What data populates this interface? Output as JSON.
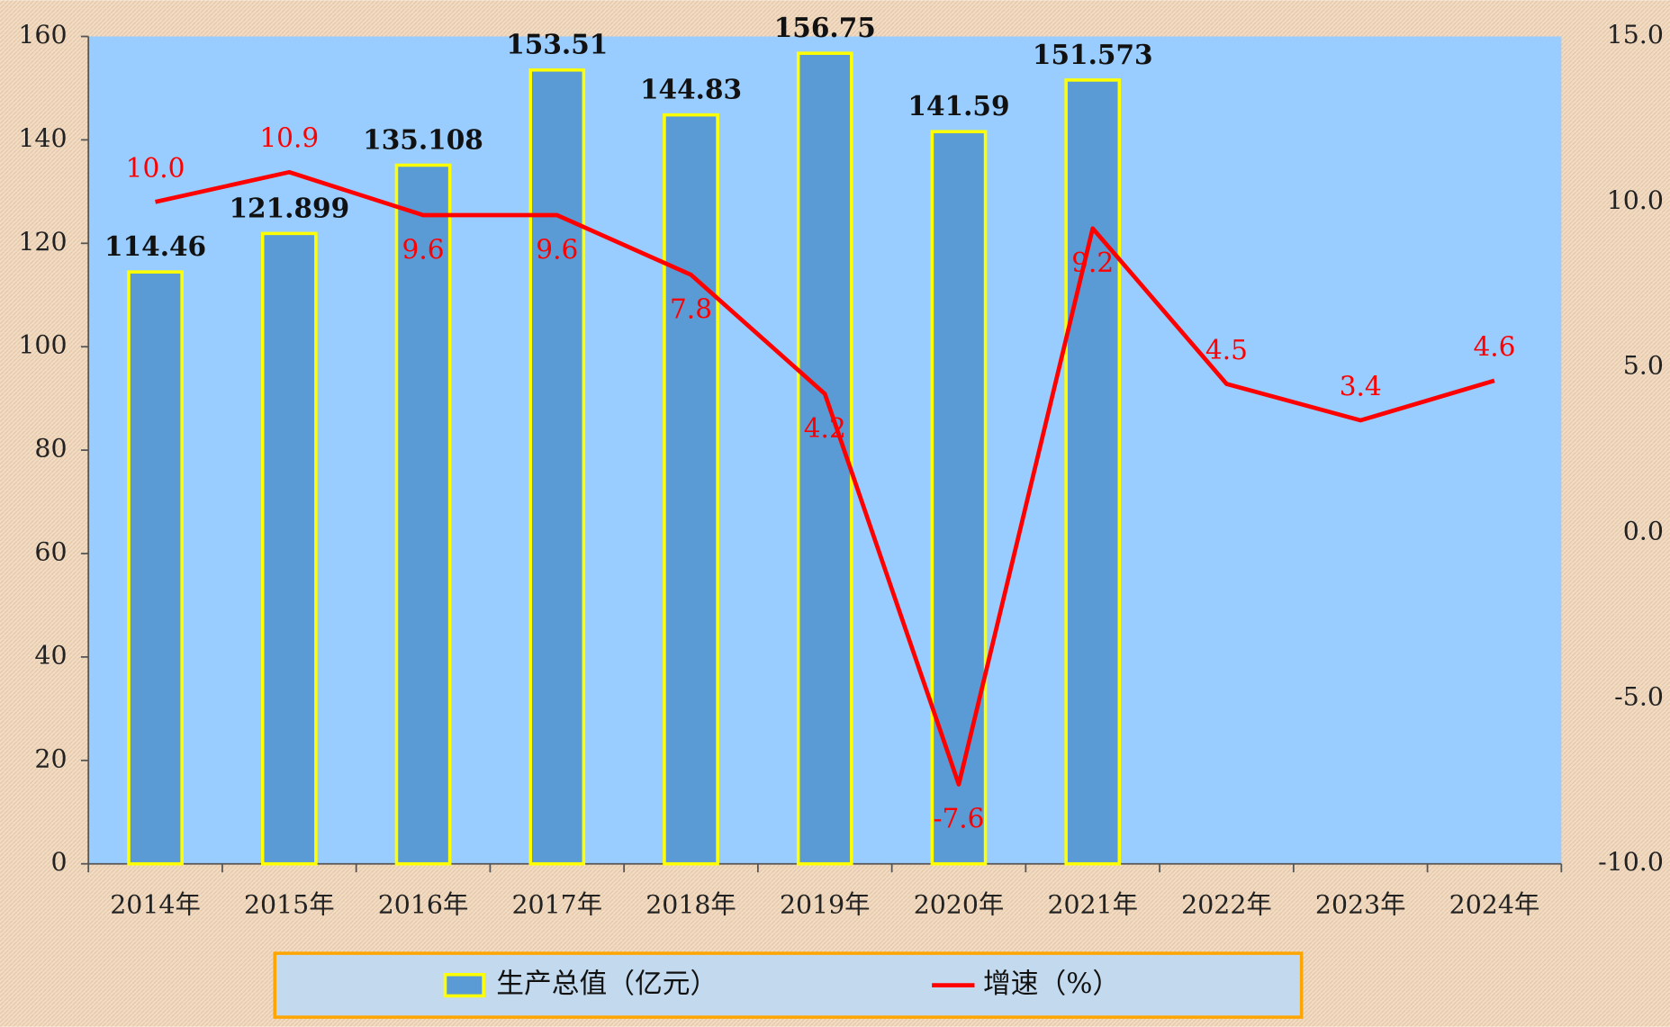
{
  "chart_data": {
    "type": "bar_line",
    "categories": [
      "2014年",
      "2015年",
      "2016年",
      "2017年",
      "2018年",
      "2019年",
      "2020年",
      "2021年",
      "2022年",
      "2023年",
      "2024年"
    ],
    "series": [
      {
        "name": "生产总值（亿元）",
        "type": "bar",
        "color": "#5b9bd5",
        "edge_color": "#ffff00",
        "axis": "y",
        "values": [
          114.46,
          121.899,
          135.108,
          153.51,
          144.83,
          156.75,
          141.59,
          151.573,
          null,
          null,
          null
        ]
      },
      {
        "name": "增速（%）",
        "type": "line",
        "color": "#ff0000",
        "axis": "y2",
        "values": [
          10.0,
          10.9,
          9.6,
          9.6,
          7.8,
          4.2,
          -7.6,
          9.2,
          4.5,
          3.4,
          4.6
        ],
        "value_labels": [
          "10.0",
          "10.9",
          "9.6",
          "9.6",
          "7.8",
          "4.2",
          "-7.6",
          "9.2",
          "4.5",
          "3.4",
          "4.6"
        ]
      }
    ],
    "ylim": [
      0,
      160
    ],
    "yticks": [
      0,
      20,
      40,
      60,
      80,
      100,
      120,
      140,
      160
    ],
    "y2lim": [
      -10,
      15
    ],
    "y2ticks": [
      {
        "value": -10,
        "label": "-10.0"
      },
      {
        "value": -5,
        "label": "-5.0"
      },
      {
        "value": 0,
        "label": "0.0"
      },
      {
        "value": 5,
        "label": "5.0"
      },
      {
        "value": 10,
        "label": "10.0"
      },
      {
        "value": 15,
        "label": "15.0"
      }
    ],
    "legend": "bottom",
    "grid": false
  }
}
